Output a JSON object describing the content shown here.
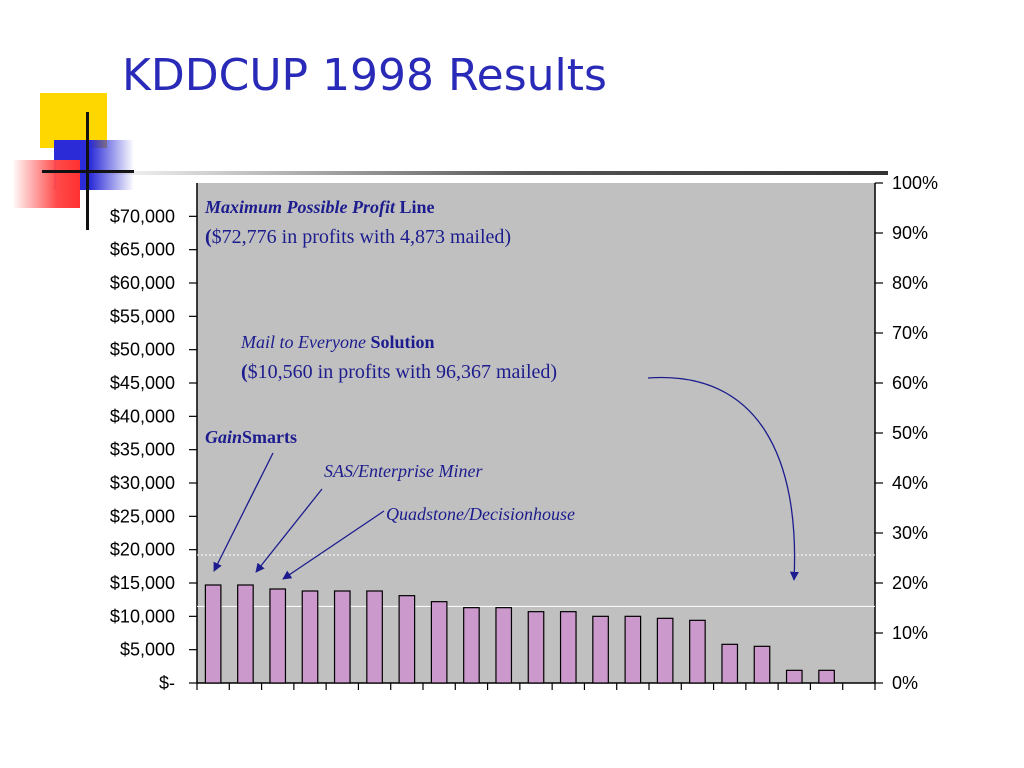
{
  "slide": {
    "title": "KDDCUP 1998 Results"
  },
  "chart_data": {
    "type": "bar",
    "title": "",
    "xlabel": "",
    "ylabel": "",
    "ylim": [
      0,
      75000
    ],
    "y2lim": [
      0,
      100
    ],
    "grid": false,
    "bar_color": "#cc99cc",
    "plot_background": "#c0c0c0",
    "annotation_color": "#1c1c8e",
    "y_ticks": [
      "$-",
      "$5,000",
      "$10,000",
      "$15,000",
      "$20,000",
      "$25,000",
      "$30,000",
      "$35,000",
      "$40,000",
      "$45,000",
      "$50,000",
      "$55,000",
      "$60,000",
      "$65,000",
      "$70,000"
    ],
    "y2_ticks": [
      "0%",
      "10%",
      "20%",
      "30%",
      "40%",
      "50%",
      "60%",
      "70%",
      "80%",
      "90%",
      "100%"
    ],
    "values": [
      14700,
      14700,
      14100,
      13800,
      13800,
      13800,
      13100,
      12200,
      11300,
      11300,
      10700,
      10700,
      10000,
      10000,
      9700,
      9400,
      5800,
      5500,
      1900,
      1900
    ],
    "reference_lines": [
      {
        "value": 19200,
        "style": "dotted"
      },
      {
        "value": 11500,
        "style": "solid"
      }
    ],
    "annotations": {
      "max_profit": {
        "line1_italic": "Maximum Possible Profit",
        "line1_bold": " Line",
        "line2_bold": "(",
        "line2": "$72,776 in profits with 4,873 mailed)"
      },
      "mail_everyone": {
        "line1_italic": "Mail to Everyone",
        "line1_bold": " Solution",
        "line2_bold": "(",
        "line2": "$10,560 in profits with 96,367 mailed)"
      },
      "gainsmarts": {
        "italic": "Gain",
        "bold": "Smarts"
      },
      "sas": "SAS/Enterprise Miner",
      "quadstone": "Quadstone/Decisionhouse"
    }
  }
}
